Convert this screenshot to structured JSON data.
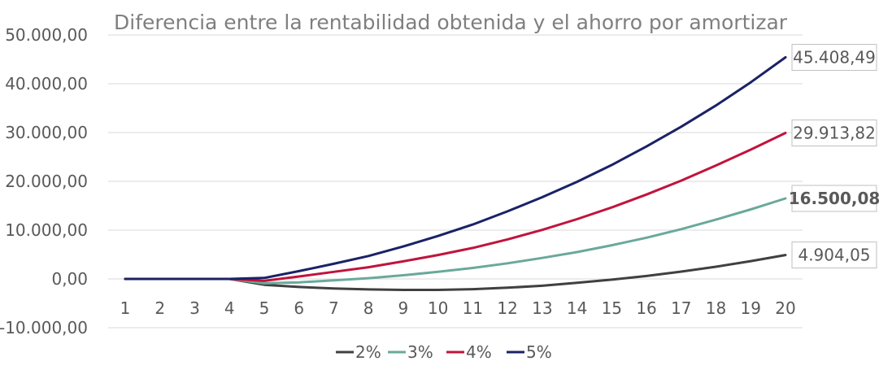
{
  "chart_data": {
    "type": "line",
    "title": "Diferencia entre la rentabilidad obtenida y el ahorro por amortizar",
    "xlabel": "",
    "ylabel": "",
    "categories": [
      "1",
      "2",
      "3",
      "4",
      "5",
      "6",
      "7",
      "8",
      "9",
      "10",
      "11",
      "12",
      "13",
      "14",
      "15",
      "16",
      "17",
      "18",
      "19",
      "20"
    ],
    "ylim": [
      -10000,
      50000
    ],
    "yticks": [
      -10000,
      0,
      10000,
      20000,
      30000,
      40000,
      50000
    ],
    "ytick_labels": [
      "-10.000,00",
      "0,00",
      "10.000,00",
      "20.000,00",
      "30.000,00",
      "40.000,00",
      "50.000,00"
    ],
    "grid": true,
    "legend_position": "bottom",
    "series": [
      {
        "name": "2%",
        "color": "#404040",
        "values": [
          0,
          0,
          0,
          0,
          -1200,
          -1650,
          -1950,
          -2150,
          -2250,
          -2250,
          -2100,
          -1800,
          -1400,
          -800,
          -150,
          600,
          1500,
          2500,
          3650,
          4904.05
        ],
        "end_label": "4.904,05",
        "end_label_bold": false
      },
      {
        "name": "3%",
        "color": "#6aa99a",
        "values": [
          0,
          0,
          0,
          0,
          -900,
          -700,
          -300,
          150,
          750,
          1450,
          2250,
          3200,
          4300,
          5500,
          6900,
          8450,
          10200,
          12150,
          14250,
          16500.08
        ],
        "end_label": "16.500,08",
        "end_label_bold": true
      },
      {
        "name": "4%",
        "color": "#c0143c",
        "values": [
          0,
          0,
          0,
          0,
          -400,
          500,
          1450,
          2400,
          3600,
          4900,
          6350,
          8100,
          10050,
          12250,
          14650,
          17300,
          20150,
          23250,
          26500,
          29913.82
        ],
        "end_label": "29.913,82",
        "end_label_bold": false
      },
      {
        "name": "5%",
        "color": "#1a2266",
        "values": [
          0,
          0,
          0,
          0,
          200,
          1600,
          3100,
          4700,
          6650,
          8800,
          11150,
          13850,
          16750,
          19900,
          23350,
          27150,
          31200,
          35550,
          40300,
          45408.49
        ],
        "end_label": "45.408,49",
        "end_label_bold": false
      }
    ]
  }
}
